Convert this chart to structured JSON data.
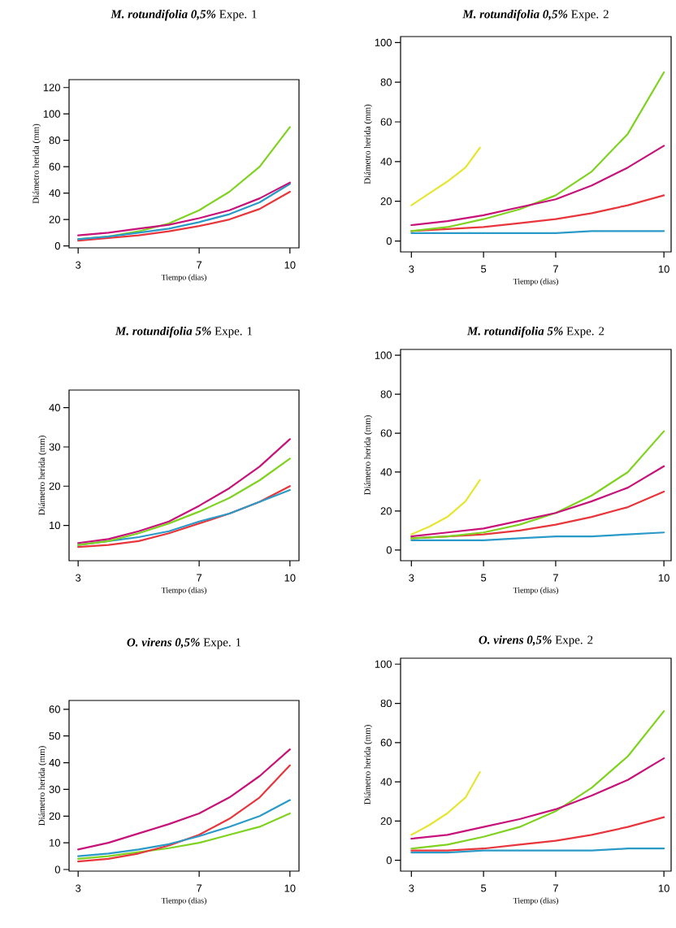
{
  "chart_data": [
    {
      "type": "line",
      "title": "**M. rotundifolia 0,5%** Expe. 1",
      "xlabel": "Tiempo (dias)",
      "ylabel": "Diámetro herida (mm)",
      "xlim": [
        2.7,
        10.3
      ],
      "ylim": [
        -1.5,
        126
      ],
      "xticks": [
        3,
        7,
        10
      ],
      "yticks": [
        0,
        20,
        40,
        60,
        80,
        100,
        120
      ],
      "marker": "none",
      "line_style": "solid",
      "series": [
        {
          "color": "#7fd320",
          "x": [
            3,
            4,
            5,
            6,
            7,
            8,
            9,
            10
          ],
          "values": [
            5,
            7,
            11,
            17,
            27,
            41,
            60,
            90
          ]
        },
        {
          "color": "#e8363c",
          "x": [
            3,
            4,
            5,
            6,
            7,
            8,
            9,
            10
          ],
          "values": [
            4,
            6,
            8,
            11,
            15,
            20,
            28,
            41
          ]
        },
        {
          "color": "#2a9ac8",
          "x": [
            3,
            4,
            5,
            6,
            7,
            8,
            9,
            10
          ],
          "values": [
            5,
            7,
            10,
            13,
            18,
            24,
            33,
            47
          ]
        },
        {
          "color": "#c8127a",
          "x": [
            3,
            4,
            5,
            6,
            7,
            8,
            9,
            10
          ],
          "values": [
            8,
            10,
            13,
            16,
            21,
            27,
            36,
            48
          ]
        }
      ]
    },
    {
      "type": "line",
      "title": "**M. rotundifolia 0,5%**  Expe. 2",
      "xlabel": "Tiempo (dias)",
      "ylabel": "Diámetro herida (mm)",
      "xlim": [
        2.7,
        10.2
      ],
      "ylim": [
        -5.5,
        103
      ],
      "xticks": [
        3,
        5,
        7,
        10
      ],
      "yticks": [
        0,
        20,
        40,
        60,
        80,
        100
      ],
      "marker": "none",
      "line_style": "solid",
      "series": [
        {
          "color": "#e6e632",
          "x": [
            3,
            3.5,
            4,
            4.5,
            4.9
          ],
          "values": [
            18,
            24,
            30,
            37,
            47
          ]
        },
        {
          "color": "#2a9ac8",
          "x": [
            3,
            4,
            5,
            6,
            7,
            8,
            9,
            10
          ],
          "values": [
            4,
            4,
            4,
            4,
            4,
            5,
            5,
            5
          ]
        },
        {
          "color": "#e8363c",
          "x": [
            3,
            4,
            5,
            6,
            7,
            8,
            9,
            10
          ],
          "values": [
            5,
            6,
            7,
            9,
            11,
            14,
            18,
            23
          ]
        },
        {
          "color": "#7fd320",
          "x": [
            3,
            4,
            5,
            6,
            7,
            8,
            9,
            10
          ],
          "values": [
            5,
            7,
            11,
            16,
            23,
            35,
            54,
            85
          ]
        },
        {
          "color": "#c8127a",
          "x": [
            3,
            4,
            5,
            6,
            7,
            8,
            9,
            10
          ],
          "values": [
            8,
            10,
            13,
            17,
            21,
            28,
            37,
            48
          ]
        }
      ]
    },
    {
      "type": "line",
      "title": "**M. rotundifolia 5%**  Expe. 1",
      "xlabel": "Tiempo (dias)",
      "ylabel": "Diámetro herida (mm)",
      "xlim": [
        2.7,
        10.3
      ],
      "ylim": [
        1,
        44.5
      ],
      "xticks": [
        3,
        7,
        10
      ],
      "yticks": [
        10,
        20,
        30,
        40
      ],
      "marker": "none",
      "line_style": "solid",
      "series": [
        {
          "color": "#e8363c",
          "x": [
            3,
            4,
            5,
            6,
            7,
            8,
            9,
            10
          ],
          "values": [
            4.5,
            5,
            6,
            8,
            10.5,
            13,
            16,
            20
          ]
        },
        {
          "color": "#2a9ac8",
          "x": [
            3,
            4,
            5,
            6,
            7,
            8,
            9,
            10
          ],
          "values": [
            5,
            6,
            7,
            8.5,
            11,
            13,
            16,
            19
          ]
        },
        {
          "color": "#7fd320",
          "x": [
            3,
            4,
            5,
            6,
            7,
            8,
            9,
            10
          ],
          "values": [
            5,
            6,
            8,
            10.5,
            13.5,
            17,
            21.5,
            27
          ]
        },
        {
          "color": "#c8127a",
          "x": [
            3,
            4,
            5,
            6,
            7,
            8,
            9,
            10
          ],
          "values": [
            5.5,
            6.5,
            8.5,
            11,
            15,
            19.5,
            25,
            32
          ]
        }
      ]
    },
    {
      "type": "line",
      "title": "**M. rotundifolia 5%** Expe. 2",
      "xlabel": "Tiempo (dias)",
      "ylabel": "Diámetro herida (mm)",
      "xlim": [
        2.7,
        10.2
      ],
      "ylim": [
        -5.5,
        103
      ],
      "xticks": [
        3,
        5,
        7,
        10
      ],
      "yticks": [
        0,
        20,
        40,
        60,
        80,
        100
      ],
      "marker": "none",
      "line_style": "solid",
      "series": [
        {
          "color": "#e6e632",
          "x": [
            3,
            3.5,
            4,
            4.5,
            4.9
          ],
          "values": [
            8,
            12,
            17,
            25,
            36
          ]
        },
        {
          "color": "#2a9ac8",
          "x": [
            3,
            4,
            5,
            6,
            7,
            8,
            9,
            10
          ],
          "values": [
            5,
            5,
            5,
            6,
            7,
            7,
            8,
            9
          ]
        },
        {
          "color": "#e8363c",
          "x": [
            3,
            4,
            5,
            6,
            7,
            8,
            9,
            10
          ],
          "values": [
            6,
            7,
            8,
            10,
            13,
            17,
            22,
            30
          ]
        },
        {
          "color": "#7fd320",
          "x": [
            3,
            4,
            5,
            6,
            7,
            8,
            9,
            10
          ],
          "values": [
            6,
            7,
            9,
            13,
            19,
            28,
            40,
            61
          ]
        },
        {
          "color": "#c8127a",
          "x": [
            3,
            4,
            5,
            6,
            7,
            8,
            9,
            10
          ],
          "values": [
            7,
            9,
            11,
            15,
            19,
            25,
            32,
            43
          ]
        }
      ]
    },
    {
      "type": "line",
      "title": "**O. virens 0,5%** Expe. 1",
      "xlabel": "Tiempo (dias)",
      "ylabel": "Diámetro herida (mm)",
      "xlim": [
        2.7,
        10.3
      ],
      "ylim": [
        -0.6,
        63.3
      ],
      "xticks": [
        3,
        7,
        10
      ],
      "yticks": [
        0,
        10,
        20,
        30,
        40,
        50,
        60
      ],
      "marker": "none",
      "line_style": "solid",
      "series": [
        {
          "color": "#7fd320",
          "x": [
            3,
            4,
            5,
            6,
            7,
            8,
            9,
            10
          ],
          "values": [
            4,
            5,
            6.5,
            8,
            10,
            13,
            16,
            21
          ]
        },
        {
          "color": "#e8363c",
          "x": [
            3,
            4,
            5,
            6,
            7,
            8,
            9,
            10
          ],
          "values": [
            3,
            4,
            6,
            9,
            13,
            19,
            27,
            39
          ]
        },
        {
          "color": "#2a9ac8",
          "x": [
            3,
            4,
            5,
            6,
            7,
            8,
            9,
            10
          ],
          "values": [
            5,
            6,
            7.5,
            9.5,
            12.5,
            16,
            20,
            26
          ]
        },
        {
          "color": "#c8127a",
          "x": [
            3,
            4,
            5,
            6,
            7,
            8,
            9,
            10
          ],
          "values": [
            7.5,
            10,
            13.5,
            17,
            21,
            27,
            35,
            45
          ]
        }
      ]
    },
    {
      "type": "line",
      "title": "**O. virens 0,5%** Expe. 2",
      "xlabel": "Tiempo (dias)",
      "ylabel": "Diámetro herida (mm)",
      "xlim": [
        2.7,
        10.2
      ],
      "ylim": [
        -5.5,
        103
      ],
      "xticks": [
        3,
        5,
        7,
        10
      ],
      "yticks": [
        0,
        20,
        40,
        60,
        80,
        100
      ],
      "marker": "none",
      "line_style": "solid",
      "series": [
        {
          "color": "#e6e632",
          "x": [
            3,
            3.5,
            4,
            4.5,
            4.9
          ],
          "values": [
            13,
            18,
            24,
            32,
            45
          ]
        },
        {
          "color": "#2a9ac8",
          "x": [
            3,
            4,
            5,
            6,
            7,
            8,
            9,
            10
          ],
          "values": [
            4,
            4,
            5,
            5,
            5,
            5,
            6,
            6
          ]
        },
        {
          "color": "#e8363c",
          "x": [
            3,
            4,
            5,
            6,
            7,
            8,
            9,
            10
          ],
          "values": [
            5,
            5,
            6,
            8,
            10,
            13,
            17,
            22
          ]
        },
        {
          "color": "#7fd320",
          "x": [
            3,
            4,
            5,
            6,
            7,
            8,
            9,
            10
          ],
          "values": [
            6,
            8,
            12,
            17,
            25,
            37,
            53,
            76
          ]
        },
        {
          "color": "#c8127a",
          "x": [
            3,
            4,
            5,
            6,
            7,
            8,
            9,
            10
          ],
          "values": [
            11,
            13,
            17,
            21,
            26,
            33,
            41,
            52
          ]
        }
      ]
    }
  ]
}
